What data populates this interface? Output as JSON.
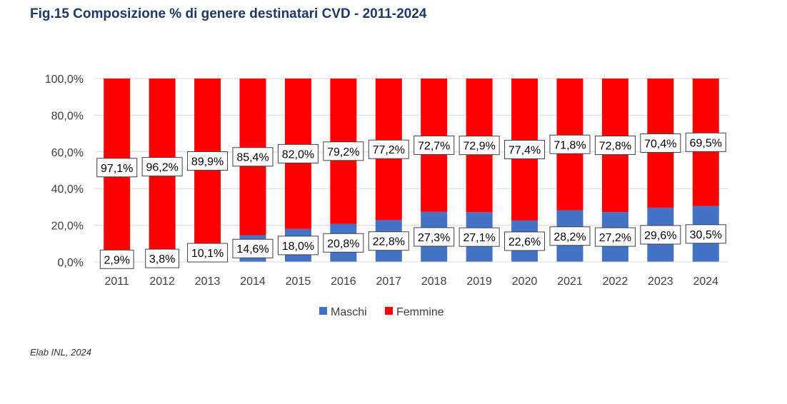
{
  "chart_data": {
    "type": "bar",
    "stacked": true,
    "title": "Fig.15 Composizione % di genere destinatari CVD - 2011-2024",
    "categories": [
      "2011",
      "2012",
      "2013",
      "2014",
      "2015",
      "2016",
      "2017",
      "2018",
      "2019",
      "2020",
      "2021",
      "2022",
      "2023",
      "2024"
    ],
    "series": [
      {
        "name": "Maschi",
        "color": "#4472c4",
        "values": [
          2.9,
          3.8,
          10.1,
          14.6,
          18.0,
          20.8,
          22.8,
          27.3,
          27.1,
          22.6,
          28.2,
          27.2,
          29.6,
          30.5
        ],
        "labels": [
          "2,9%",
          "3,8%",
          "10,1%",
          "14,6%",
          "18,0%",
          "20,8%",
          "22,8%",
          "27,3%",
          "27,1%",
          "22,6%",
          "28,2%",
          "27,2%",
          "29,6%",
          "30,5%"
        ]
      },
      {
        "name": "Femmine",
        "color": "#ff0000",
        "values": [
          97.1,
          96.2,
          89.9,
          85.4,
          82.0,
          79.2,
          77.2,
          72.7,
          72.9,
          77.4,
          71.8,
          72.8,
          70.4,
          69.5
        ],
        "labels": [
          "97,1%",
          "96,2%",
          "89,9%",
          "85,4%",
          "82,0%",
          "79,2%",
          "77,2%",
          "72,7%",
          "72,9%",
          "77,4%",
          "71,8%",
          "72,8%",
          "70,4%",
          "69,5%"
        ]
      }
    ],
    "ylim": [
      0,
      100
    ],
    "yticks": [
      0,
      20,
      40,
      60,
      80,
      100
    ],
    "ytick_labels": [
      "0,0%",
      "20,0%",
      "40,0%",
      "60,0%",
      "80,0%",
      "100,0%"
    ],
    "xlabel": "",
    "ylabel": "",
    "grid": true,
    "legend": "bottom"
  },
  "source": "Elab INL, 2024"
}
